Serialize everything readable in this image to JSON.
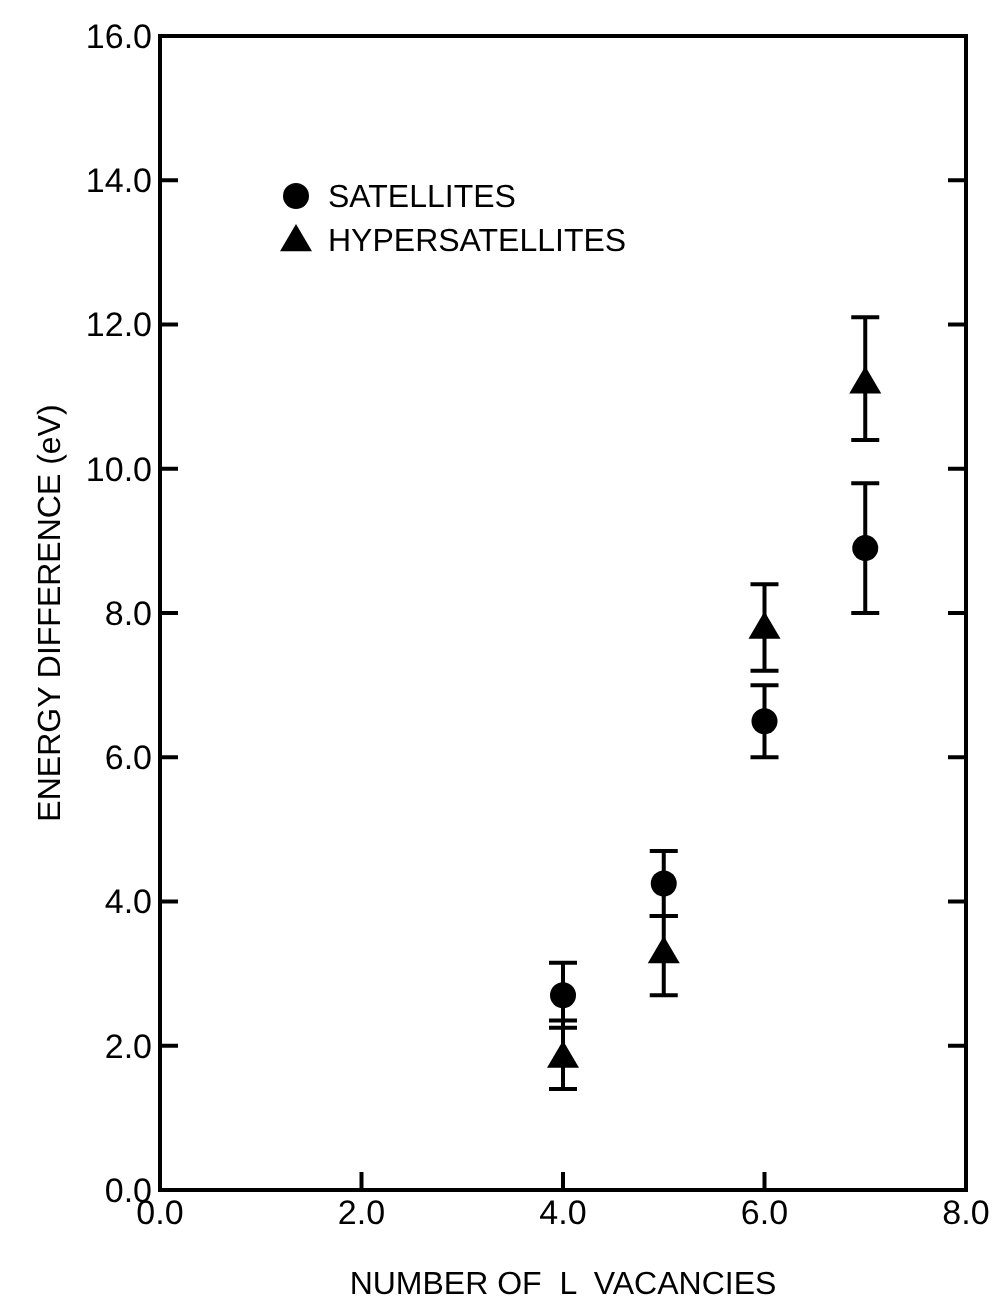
{
  "chart_data": {
    "type": "scatter",
    "xlabel": "NUMBER OF  L  VACANCIES",
    "ylabel": "ENERGY DIFFERENCE (eV)",
    "x": [
      4,
      5,
      6,
      7
    ],
    "xlim": [
      0,
      8
    ],
    "ylim": [
      0,
      16
    ],
    "xticks": [
      {
        "value": 0,
        "label": "0.0"
      },
      {
        "value": 2,
        "label": "2.0"
      },
      {
        "value": 4,
        "label": "4.0"
      },
      {
        "value": 6,
        "label": "6.0"
      },
      {
        "value": 8,
        "label": "8.0"
      }
    ],
    "yticks": [
      {
        "value": 0,
        "label": "0.0"
      },
      {
        "value": 2,
        "label": "2.0"
      },
      {
        "value": 4,
        "label": "4.0"
      },
      {
        "value": 6,
        "label": "6.0"
      },
      {
        "value": 8,
        "label": "8.0"
      },
      {
        "value": 10,
        "label": "10.0"
      },
      {
        "value": 12,
        "label": "12.0"
      },
      {
        "value": 14,
        "label": "14.0"
      },
      {
        "value": 16,
        "label": "16.0"
      }
    ],
    "legend": "top left",
    "grid": false,
    "series": [
      {
        "name": "SATELLITES",
        "color": "#000000",
        "marker": "circle",
        "values": [
          2.7,
          4.25,
          6.5,
          8.9
        ],
        "errors": [
          [
            2.25,
            3.15
          ],
          [
            3.8,
            4.7
          ],
          [
            6.0,
            7.0
          ],
          [
            8.0,
            9.8
          ]
        ]
      },
      {
        "name": "HYPERSATELLITES",
        "color": "#000000",
        "marker": "triangle",
        "values": [
          1.85,
          3.3,
          7.8,
          11.2
        ],
        "errors": [
          [
            1.4,
            2.35
          ],
          [
            2.7,
            3.8
          ],
          [
            7.2,
            8.4
          ],
          [
            10.4,
            12.1
          ]
        ]
      }
    ]
  }
}
